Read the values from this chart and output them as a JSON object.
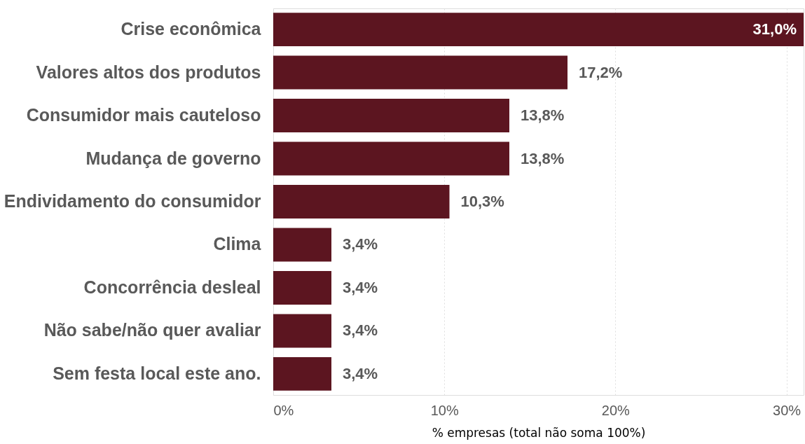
{
  "chart_data": {
    "type": "bar",
    "orientation": "horizontal",
    "xlabel": "% empresas (total não soma 100%)",
    "categories": [
      "Crise econômica",
      "Valores altos dos produtos",
      "Consumidor mais cauteloso",
      "Mudança de governo",
      "Endividamento do consumidor",
      "Clima",
      "Concorrência desleal",
      "Não sabe/não quer avaliar",
      "Sem festa local este ano."
    ],
    "values": [
      31.0,
      17.2,
      13.8,
      13.8,
      10.3,
      3.4,
      3.4,
      3.4,
      3.4
    ],
    "value_labels": [
      "31,0%",
      "17,2%",
      "13,8%",
      "13,8%",
      "10,3%",
      "3,4%",
      "3,4%",
      "3,4%",
      "3,4%"
    ],
    "color": "#5c1520",
    "xlim": [
      0,
      31
    ],
    "xticks": [
      {
        "value": 0,
        "label": "0%"
      },
      {
        "value": 10,
        "label": "10%"
      },
      {
        "value": 20,
        "label": "20%"
      },
      {
        "value": 30,
        "label": "30%"
      }
    ],
    "grid": "x"
  }
}
